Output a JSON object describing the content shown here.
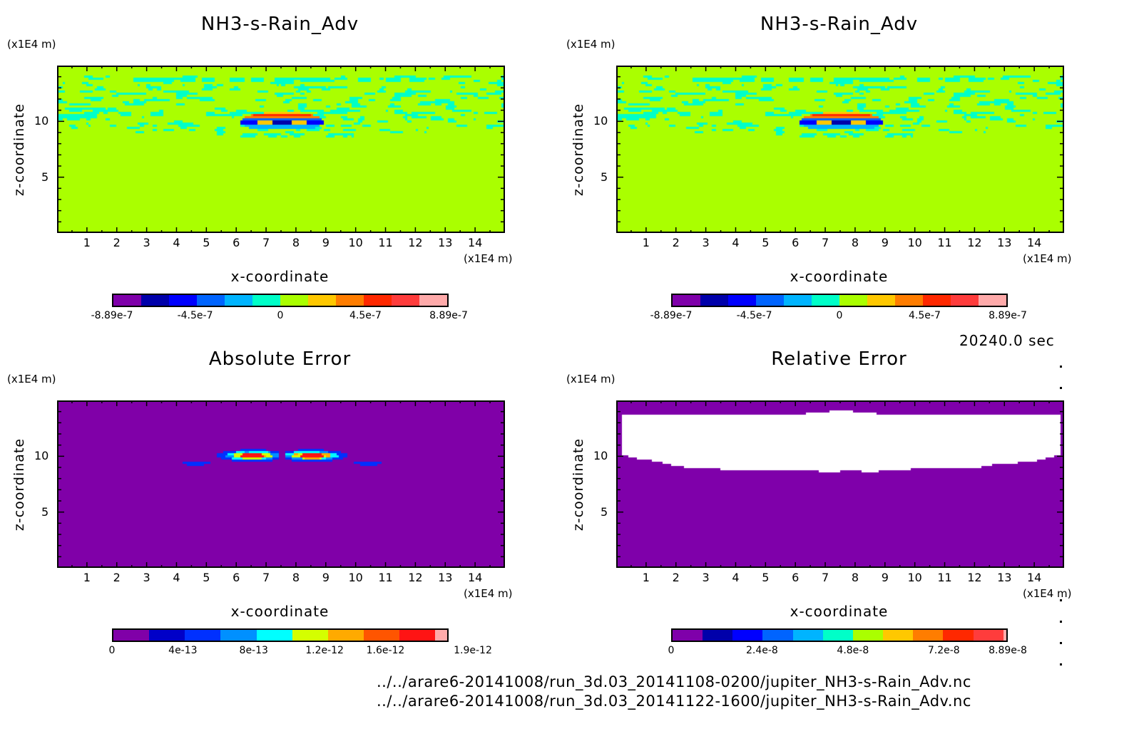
{
  "time_label": "20240.0 sec",
  "file_paths": [
    "../../arare6-20141008/run_3d.03_20141108-0200/jupiter_NH3-s-Rain_Adv.nc",
    "../../arare6-20141008/run_3d.03_20141122-1600/jupiter_NH3-s-Rain_Adv.nc"
  ],
  "chart_data": [
    {
      "type": "heatmap",
      "title": "NH3-s-Rain_Adv",
      "xlabel": "x-coordinate",
      "ylabel": "z-coordinate",
      "x_unit": "(x1E4 m)",
      "y_unit": "(x1E4 m)",
      "xlim": [
        0,
        15
      ],
      "ylim": [
        0,
        15
      ],
      "x_ticks": [
        "1",
        "2",
        "3",
        "4",
        "5",
        "6",
        "7",
        "8",
        "9",
        "10",
        "11",
        "12",
        "13",
        "14"
      ],
      "y_ticks": [
        "5",
        "10"
      ],
      "field": "signed-anomaly",
      "colorbar": {
        "range": [
          -8.89e-07,
          8.89e-07
        ],
        "labels": [
          "-8.89e-7",
          "-4.5e-7",
          "0",
          "4.5e-7",
          "8.89e-7"
        ],
        "colors": [
          "#7f00aa",
          "#0000aa",
          "#0000ff",
          "#0064ff",
          "#00b4ff",
          "#00ffc8",
          "#aaff00",
          "#ffc800",
          "#ff7d00",
          "#ff2800",
          "#ff3c3c",
          "#ffaaaa"
        ]
      }
    },
    {
      "type": "heatmap",
      "title": "NH3-s-Rain_Adv",
      "xlabel": "x-coordinate",
      "ylabel": "z-coordinate",
      "x_unit": "(x1E4 m)",
      "y_unit": "(x1E4 m)",
      "xlim": [
        0,
        15
      ],
      "ylim": [
        0,
        15
      ],
      "x_ticks": [
        "1",
        "2",
        "3",
        "4",
        "5",
        "6",
        "7",
        "8",
        "9",
        "10",
        "11",
        "12",
        "13",
        "14"
      ],
      "y_ticks": [
        "5",
        "10"
      ],
      "field": "signed-anomaly",
      "colorbar": {
        "range": [
          -8.89e-07,
          8.89e-07
        ],
        "labels": [
          "-8.89e-7",
          "-4.5e-7",
          "0",
          "4.5e-7",
          "8.89e-7"
        ],
        "colors": [
          "#7f00aa",
          "#0000aa",
          "#0000ff",
          "#0064ff",
          "#00b4ff",
          "#00ffc8",
          "#aaff00",
          "#ffc800",
          "#ff7d00",
          "#ff2800",
          "#ff3c3c",
          "#ffaaaa"
        ]
      }
    },
    {
      "type": "heatmap",
      "title": "Absolute Error",
      "xlabel": "x-coordinate",
      "ylabel": "z-coordinate",
      "x_unit": "(x1E4 m)",
      "y_unit": "(x1E4 m)",
      "xlim": [
        0,
        15
      ],
      "ylim": [
        0,
        15
      ],
      "x_ticks": [
        "1",
        "2",
        "3",
        "4",
        "5",
        "6",
        "7",
        "8",
        "9",
        "10",
        "11",
        "12",
        "13",
        "14"
      ],
      "y_ticks": [
        "5",
        "10"
      ],
      "field": "abs-error",
      "colorbar": {
        "range": [
          0,
          1.9e-12
        ],
        "labels": [
          "0",
          "4e-13",
          "8e-13",
          "1.2e-12",
          "1.6e-12",
          "1.9e-12"
        ],
        "colors": [
          "#8000a8",
          "#0000c8",
          "#0030ff",
          "#0090ff",
          "#00ffff",
          "#d4ff00",
          "#ffaa00",
          "#ff5500",
          "#ff1414",
          "#ffaaaa"
        ]
      }
    },
    {
      "type": "heatmap",
      "title": "Relative Error",
      "xlabel": "x-coordinate",
      "ylabel": "z-coordinate",
      "x_unit": "(x1E4 m)",
      "y_unit": "(x1E4 m)",
      "xlim": [
        0,
        15
      ],
      "ylim": [
        0,
        15
      ],
      "x_ticks": [
        "1",
        "2",
        "3",
        "4",
        "5",
        "6",
        "7",
        "8",
        "9",
        "10",
        "11",
        "12",
        "13",
        "14"
      ],
      "y_ticks": [
        "5",
        "10"
      ],
      "field": "rel-error",
      "colorbar": {
        "range": [
          0,
          8.89e-08
        ],
        "labels": [
          "0",
          "2.4e-8",
          "4.8e-8",
          "7.2e-8",
          "8.89e-8"
        ],
        "colors": [
          "#7f00aa",
          "#0000aa",
          "#0000ff",
          "#0064ff",
          "#00b4ff",
          "#00ffc8",
          "#aaff00",
          "#ffc800",
          "#ff7d00",
          "#ff2800",
          "#ff3c3c",
          "#ffaaaa"
        ]
      }
    }
  ]
}
